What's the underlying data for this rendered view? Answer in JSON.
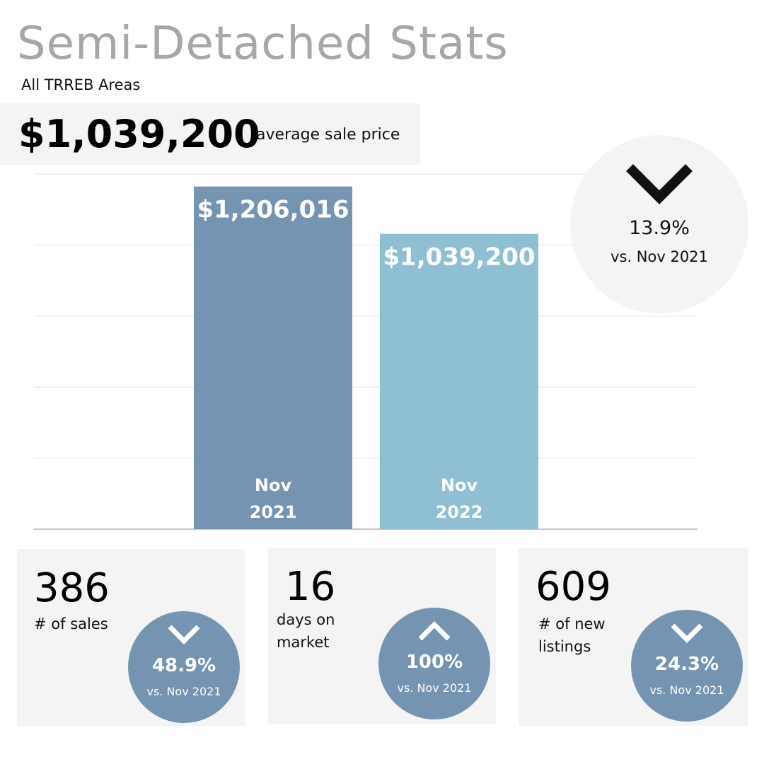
{
  "header": {
    "title": "Semi-Detached Stats",
    "subtitle": "All TRREB Areas"
  },
  "headline": {
    "price": "$1,039,200",
    "caption": "average sale price"
  },
  "change_badge": {
    "direction": "down",
    "percent": "13.9%",
    "comparison": "vs. Nov 2021"
  },
  "chart_data": {
    "type": "bar",
    "categories": [
      "Nov 2021",
      "Nov 2022"
    ],
    "values": [
      1206016,
      1039200
    ],
    "value_labels": [
      "$1,206,016",
      "$1,039,200"
    ],
    "category_lines": [
      [
        "Nov",
        "2021"
      ],
      [
        "Nov",
        "2022"
      ]
    ],
    "colors": [
      "#7494b1",
      "#8fbfd3"
    ],
    "ylim": [
      0,
      1250000
    ],
    "grid": true,
    "title": "",
    "xlabel": "",
    "ylabel": ""
  },
  "stats": [
    {
      "number": "386",
      "label": "# of sales",
      "direction": "down",
      "percent": "48.9%",
      "comparison": "vs. Nov 2021"
    },
    {
      "number": "16",
      "label": "days on market",
      "direction": "up",
      "percent": "100%",
      "comparison": "vs. Nov 2021"
    },
    {
      "number": "609",
      "label": "# of new listings",
      "direction": "down",
      "percent": "24.3%",
      "comparison": "vs. Nov 2021"
    }
  ]
}
